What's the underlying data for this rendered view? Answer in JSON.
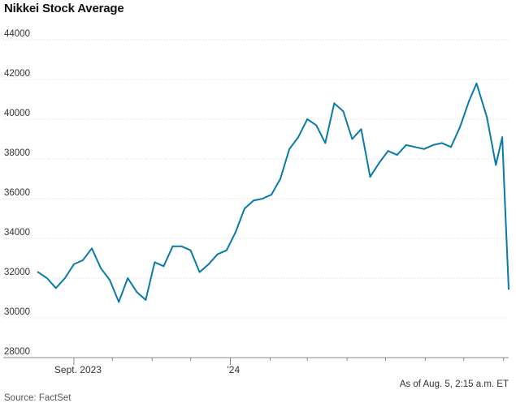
{
  "chart_data": {
    "type": "line",
    "title": "Nikkei Stock Average",
    "xlabel": "",
    "ylabel": "",
    "ylim": [
      28000,
      44000
    ],
    "xlim": [
      "2023-08-01",
      "2024-08-05"
    ],
    "yticks": [
      28000,
      30000,
      32000,
      34000,
      36000,
      38000,
      40000,
      42000,
      44000
    ],
    "xtick_labels": [
      {
        "date": "2023-09-01",
        "label": "Sept. 2023"
      },
      {
        "date": "2024-01-01",
        "label": "'24"
      }
    ],
    "minor_ticks": [
      "2023-10-01",
      "2023-11-01",
      "2023-12-01",
      "2024-02-01",
      "2024-03-01",
      "2024-04-01",
      "2024-05-01",
      "2024-06-01",
      "2024-07-01",
      "2024-08-01"
    ],
    "grid": true,
    "color": "#0a7aa8",
    "series": [
      {
        "name": "",
        "x": [
          "2023-08-04",
          "2023-08-11",
          "2023-08-18",
          "2023-08-25",
          "2023-09-01",
          "2023-09-08",
          "2023-09-15",
          "2023-09-22",
          "2023-09-29",
          "2023-10-06",
          "2023-10-13",
          "2023-10-20",
          "2023-10-27",
          "2023-11-03",
          "2023-11-10",
          "2023-11-17",
          "2023-11-24",
          "2023-12-01",
          "2023-12-08",
          "2023-12-15",
          "2023-12-22",
          "2023-12-29",
          "2024-01-05",
          "2024-01-12",
          "2024-01-19",
          "2024-01-26",
          "2024-02-02",
          "2024-02-09",
          "2024-02-16",
          "2024-02-23",
          "2024-03-01",
          "2024-03-08",
          "2024-03-15",
          "2024-03-22",
          "2024-03-29",
          "2024-04-05",
          "2024-04-12",
          "2024-04-19",
          "2024-04-26",
          "2024-05-03",
          "2024-05-10",
          "2024-05-17",
          "2024-05-24",
          "2024-05-31",
          "2024-06-07",
          "2024-06-14",
          "2024-06-21",
          "2024-06-28",
          "2024-07-05",
          "2024-07-11",
          "2024-07-19",
          "2024-07-26",
          "2024-07-31",
          "2024-08-02",
          "2024-08-05"
        ],
        "y": [
          32300,
          32000,
          31500,
          32000,
          32700,
          32900,
          33500,
          32500,
          31900,
          30800,
          32000,
          31300,
          30900,
          32800,
          32600,
          33600,
          33600,
          33400,
          32300,
          32700,
          33200,
          33400,
          34300,
          35500,
          35900,
          36000,
          36200,
          37000,
          38500,
          39100,
          40000,
          39700,
          38800,
          40800,
          40400,
          39000,
          39500,
          37100,
          37800,
          38400,
          38200,
          38700,
          38600,
          38500,
          38700,
          38800,
          38600,
          39600,
          40900,
          41800,
          40100,
          37700,
          39100,
          35900,
          31458
        ]
      }
    ]
  },
  "annotations": {
    "as_of": "As of Aug. 5, 2:15 a.m. ET",
    "source": "Source: FactSet"
  }
}
